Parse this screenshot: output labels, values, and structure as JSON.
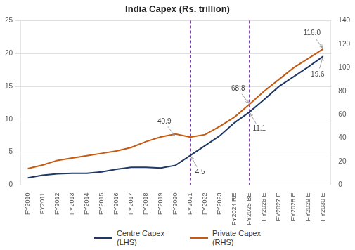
{
  "chart_data": {
    "type": "line",
    "title": "India Capex (Rs. trillion)",
    "categories": [
      "FY2010",
      "FY2011",
      "FY2012",
      "FY2013",
      "FY2014",
      "FY2015",
      "FY2016",
      "FY2017",
      "FY2018",
      "FY2019",
      "FY2020",
      "FY2021",
      "FY2022",
      "FY2023",
      "FY2024 RE",
      "FY2025 BE",
      "FY2026 E",
      "FY2027 E",
      "FY2028 E",
      "FY2029 E",
      "FY2030 E"
    ],
    "series": [
      {
        "name": "Centre Capex\n(LHS)",
        "color": "#1f3864",
        "axis": "y",
        "values": [
          1.1,
          1.5,
          1.7,
          1.8,
          1.8,
          2.0,
          2.4,
          2.7,
          2.7,
          2.6,
          3.0,
          4.5,
          6.0,
          7.5,
          9.5,
          11.1,
          13.0,
          15.0,
          16.5,
          18.0,
          19.6
        ]
      },
      {
        "name": "Private Capex\n(RHS)",
        "color": "#c55a11",
        "axis": "y2",
        "values": [
          14,
          17,
          21,
          23,
          25,
          27,
          29,
          32,
          37,
          41,
          43.5,
          40.9,
          43,
          50,
          58,
          68.8,
          80,
          90,
          100,
          108,
          116.0
        ]
      }
    ],
    "ylim": [
      0,
      25
    ],
    "yticks": [
      0,
      5,
      10,
      15,
      20,
      25
    ],
    "y2lim": [
      0,
      140
    ],
    "y2ticks": [
      0,
      20,
      40,
      60,
      80,
      100,
      120,
      140
    ],
    "vlines": [
      {
        "x": "FY2021",
        "color": "#7030a0",
        "line_style": "dashed"
      },
      {
        "x": "FY2025 BE",
        "color": "#7030a0",
        "line_style": "dashed"
      }
    ],
    "annotations": [
      {
        "text": "40.9",
        "x": "FY2020",
        "y": 40.9,
        "axis": "y2"
      },
      {
        "text": "4.5",
        "x": "FY2021",
        "y": 4.5,
        "axis": "y"
      },
      {
        "text": "68.8",
        "x": "FY2025 BE",
        "y": 68.8,
        "axis": "y2"
      },
      {
        "text": "11.1",
        "x": "FY2025 BE",
        "y": 11.1,
        "axis": "y"
      },
      {
        "text": "116.0",
        "x": "FY2030 E",
        "y": 116.0,
        "axis": "y2"
      },
      {
        "text": "19.6",
        "x": "FY2030 E",
        "y": 19.6,
        "axis": "y"
      }
    ],
    "grid": true,
    "legend": "bottom"
  }
}
